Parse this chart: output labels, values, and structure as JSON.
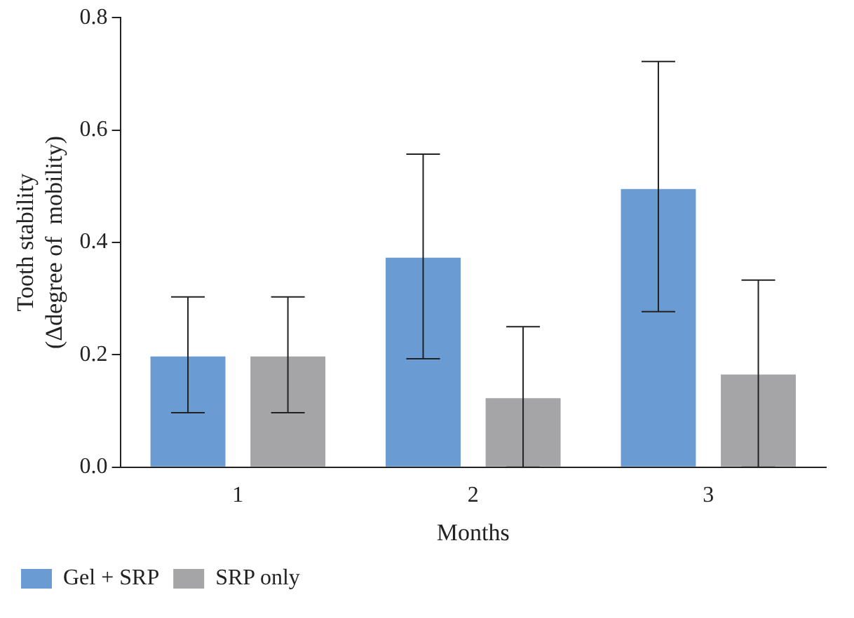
{
  "chart_data": {
    "type": "bar",
    "xlabel": "Months",
    "ylabel": "Tooth stability\n(Δdegree of  mobility)",
    "categories": [
      "1",
      "2",
      "3"
    ],
    "series": [
      {
        "name": "Gel + SRP",
        "color": "#6a9bd3",
        "values": [
          0.197,
          0.373,
          0.495
        ],
        "errors": [
          [
            0.097,
            0.303
          ],
          [
            0.193,
            0.557
          ],
          [
            0.277,
            0.722
          ]
        ]
      },
      {
        "name": "SRP only",
        "color": "#a5a5a8",
        "values": [
          0.197,
          0.123,
          0.165
        ],
        "errors": [
          [
            0.097,
            0.303
          ],
          [
            0.0,
            0.25
          ],
          [
            0.0,
            0.333
          ]
        ]
      }
    ],
    "ylim": [
      0,
      0.8
    ],
    "yticks": [
      {
        "value": 0,
        "label": "0.0"
      },
      {
        "value": 0.2,
        "label": "0.2"
      },
      {
        "value": 0.4,
        "label": "0.4"
      },
      {
        "value": 0.6,
        "label": "0.6"
      },
      {
        "value": 0.8,
        "label": "0.8"
      }
    ],
    "grid": false,
    "legend": "bottom left"
  }
}
